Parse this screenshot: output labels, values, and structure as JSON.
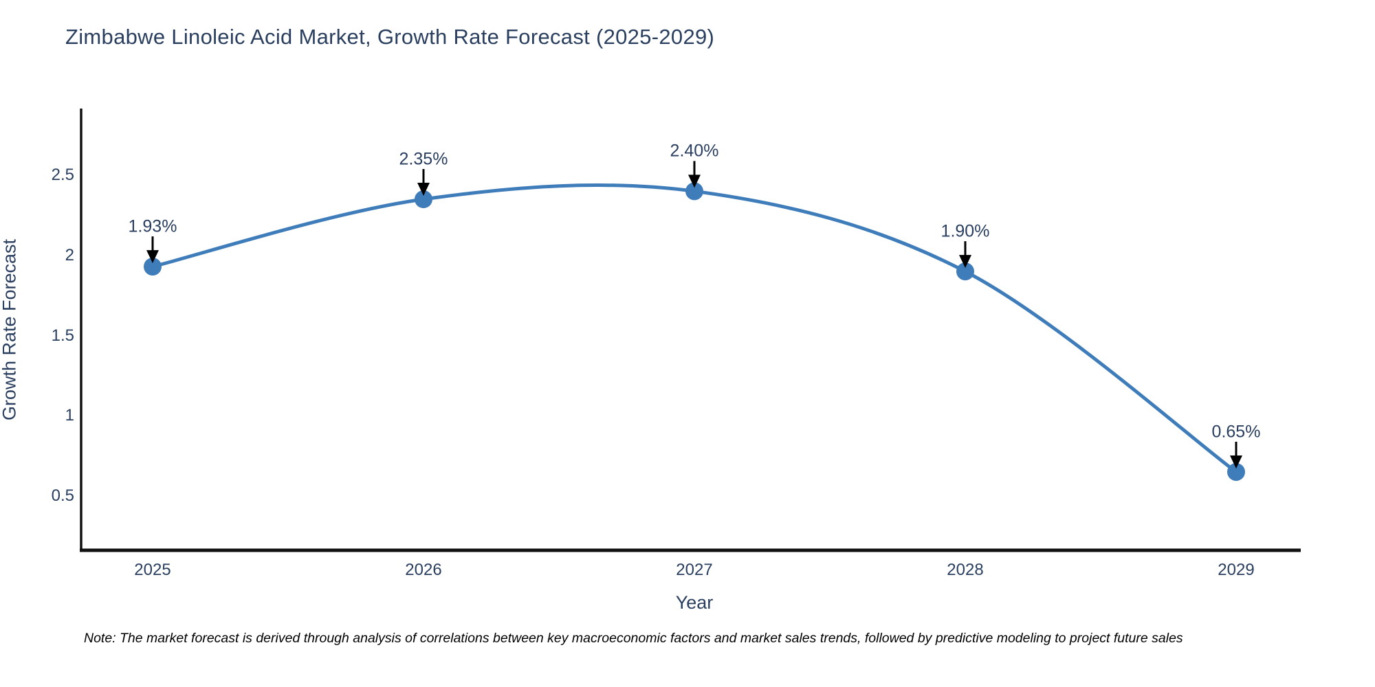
{
  "title": "Zimbabwe Linoleic Acid Market, Growth Rate Forecast (2025-2029)",
  "note": "Note: The market forecast is derived through analysis of correlations between key macroeconomic factors and market sales trends, followed by predictive modeling to project future sales",
  "chart_data": {
    "type": "line",
    "title": "Zimbabwe Linoleic Acid Market, Growth Rate Forecast (2025-2029)",
    "xlabel": "Year",
    "ylabel": "Growth Rate Forecast",
    "x": [
      2025,
      2026,
      2027,
      2028,
      2029
    ],
    "values": [
      1.93,
      2.35,
      2.4,
      1.9,
      0.65
    ],
    "point_labels": [
      "1.93%",
      "2.35%",
      "2.40%",
      "1.90%",
      "0.65%"
    ],
    "x_tick_labels": [
      "2025",
      "2026",
      "2027",
      "2028",
      "2029"
    ],
    "y_ticks": [
      0.5,
      1,
      1.5,
      2,
      2.5
    ],
    "y_tick_labels": [
      "0.5",
      "1",
      "1.5",
      "2",
      "2.5"
    ],
    "xlim": [
      2024.74,
      2029.24
    ],
    "ylim": [
      0.17,
      2.9
    ],
    "grid": false,
    "legend_position": "none",
    "line_style": "spline",
    "colors": {
      "line": "#3e7cba",
      "marker": "#3e7cba",
      "annotation_arrow": "#000000",
      "axis_line": "#111111",
      "text": "#2a3f5f",
      "background": "#ffffff"
    }
  }
}
